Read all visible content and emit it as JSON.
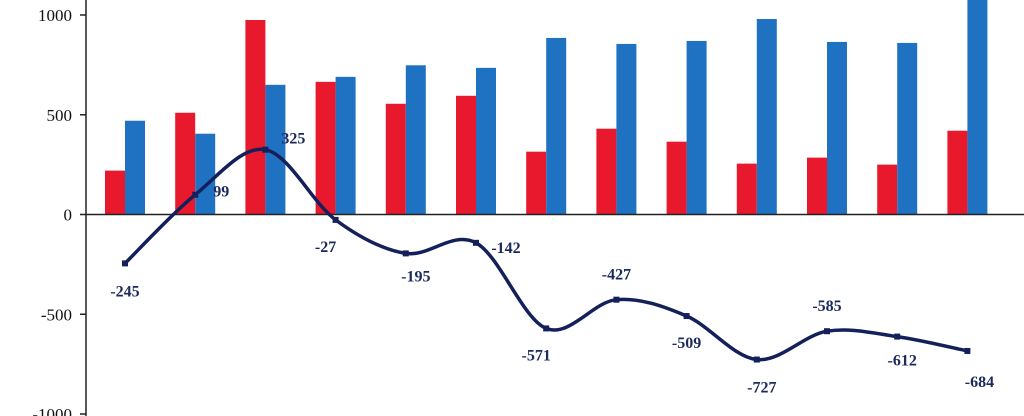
{
  "chart_data": {
    "type": "bar",
    "title": "",
    "xlabel": "",
    "ylabel": "",
    "ylim": [
      -1000,
      1000
    ],
    "yticks": [
      "1000",
      "500",
      "0",
      "-500",
      "-1000"
    ],
    "grid": false,
    "legend": "none",
    "categories": [
      "",
      "",
      "",
      "",
      "",
      "",
      "",
      "",
      "",
      "",
      "",
      "",
      ""
    ],
    "series": [
      {
        "type": "bar",
        "color": "#e8192c",
        "values": [
          220,
          510,
          975,
          665,
          555,
          595,
          315,
          430,
          365,
          255,
          285,
          250,
          420
        ]
      },
      {
        "type": "bar",
        "color": "#1f72c2",
        "values": [
          470,
          405,
          650,
          690,
          748,
          735,
          885,
          855,
          870,
          980,
          865,
          860,
          1080
        ]
      },
      {
        "type": "line",
        "color": "#14205a",
        "values": [
          -245,
          99,
          325,
          -27,
          -195,
          -142,
          -571,
          -427,
          -509,
          -727,
          -585,
          -612,
          -684
        ],
        "labels": [
          "-245",
          "99",
          "325",
          "-27",
          "-195",
          "-142",
          "-571",
          "-427",
          "-509",
          "-727",
          "-585",
          "-612",
          "-684"
        ]
      }
    ]
  }
}
